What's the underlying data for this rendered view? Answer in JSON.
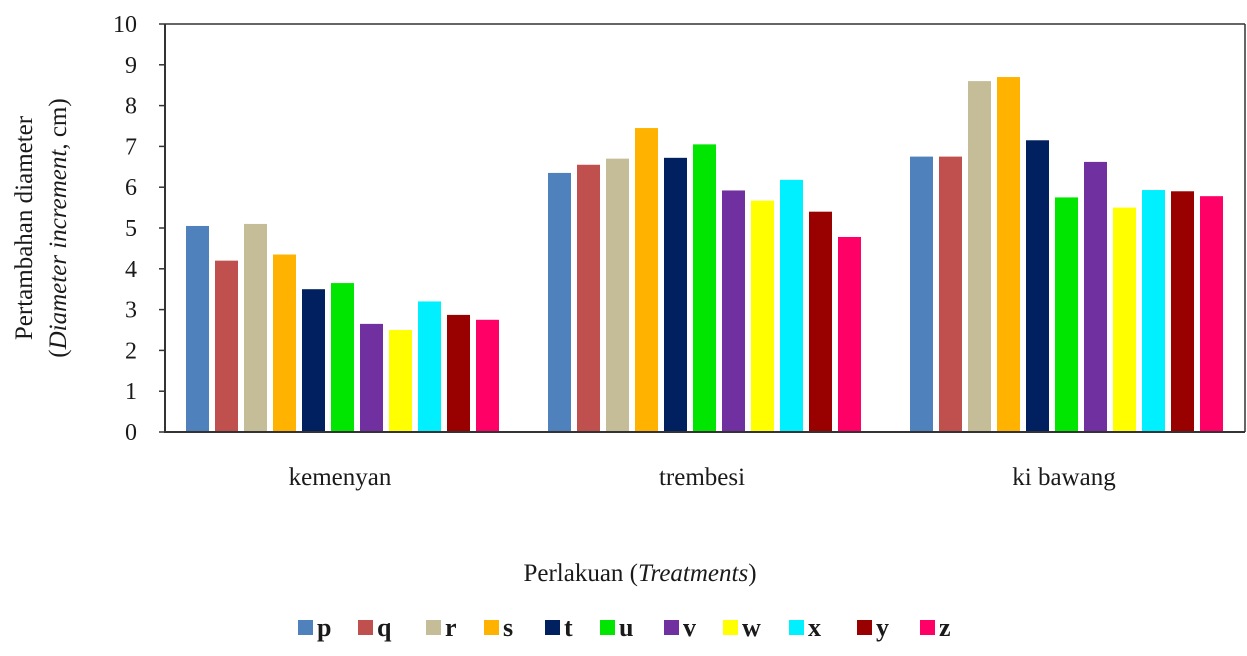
{
  "chart_data": {
    "type": "bar",
    "categories": [
      "kemenyan",
      "trembesi",
      "ki bawang"
    ],
    "series": [
      {
        "name": "p",
        "color": "#4f81bd",
        "values": [
          5.05,
          6.35,
          6.75
        ]
      },
      {
        "name": "q",
        "color": "#c0504d",
        "values": [
          4.2,
          6.55,
          6.75
        ]
      },
      {
        "name": "r",
        "color": "#c4bd97",
        "values": [
          5.1,
          6.7,
          8.6
        ]
      },
      {
        "name": "s",
        "color": "#ffb300",
        "values": [
          4.35,
          7.45,
          8.7
        ]
      },
      {
        "name": "t",
        "color": "#002060",
        "values": [
          3.5,
          6.72,
          7.15
        ]
      },
      {
        "name": "u",
        "color": "#00e600",
        "values": [
          3.65,
          7.05,
          5.75
        ]
      },
      {
        "name": "v",
        "color": "#7030a0",
        "values": [
          2.65,
          5.92,
          6.62
        ]
      },
      {
        "name": "w",
        "color": "#ffff00",
        "values": [
          2.5,
          5.67,
          5.5
        ]
      },
      {
        "name": "x",
        "color": "#00f0ff",
        "values": [
          3.2,
          6.18,
          5.93
        ]
      },
      {
        "name": "y",
        "color": "#990000",
        "values": [
          2.87,
          5.4,
          5.9
        ]
      },
      {
        "name": "z",
        "color": "#ff0066",
        "values": [
          2.75,
          4.78,
          5.78
        ]
      }
    ],
    "ylim": [
      0,
      10
    ],
    "yticks": [
      "0",
      "1",
      "2",
      "3",
      "4",
      "5",
      "6",
      "7",
      "8",
      "9",
      "10"
    ],
    "ylabel_line1": "Pertambahan diameter",
    "ylabel_line2": {
      "pre": "(",
      "italic": "Diameter increment",
      "post": ", cm)"
    },
    "xlabel": {
      "pre": "Perlakuan (",
      "italic": "Treatments",
      "post": ")"
    },
    "legend_position": "bottom",
    "grid": false
  }
}
